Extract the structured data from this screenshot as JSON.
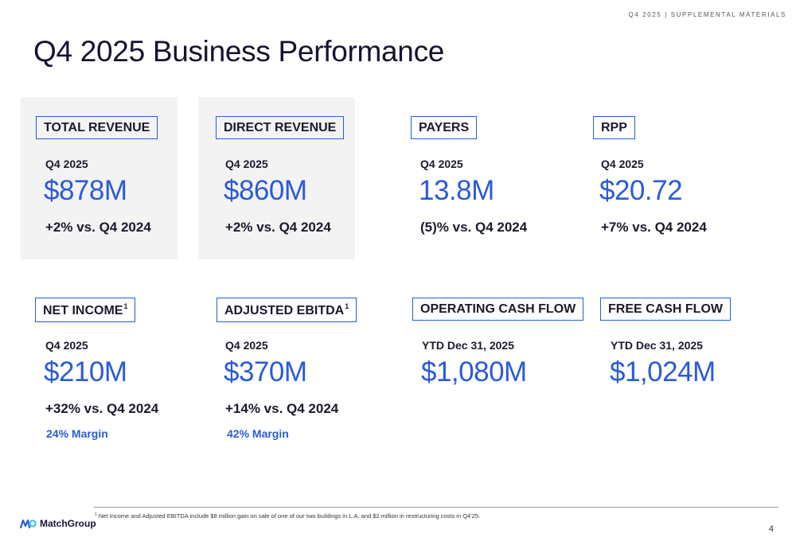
{
  "header": {
    "label": "Q4 2025 | SUPPLEMENTAL MATERIALS"
  },
  "title": "Q4 2025 Business Performance",
  "metrics": [
    {
      "label": "TOTAL REVENUE",
      "period": "Q4 2025",
      "value": "$878M",
      "change": "+2% vs. Q4 2024"
    },
    {
      "label": "DIRECT REVENUE",
      "period": "Q4 2025",
      "value": "$860M",
      "change": "+2% vs. Q4 2024"
    },
    {
      "label": "PAYERS",
      "period": "Q4 2025",
      "value": "13.8M",
      "change": "(5)% vs. Q4 2024"
    },
    {
      "label": "RPP",
      "period": "Q4 2025",
      "value": "$20.72",
      "change": "+7% vs. Q4 2024"
    },
    {
      "label": "NET INCOME",
      "sup": "1",
      "period": "Q4 2025",
      "value": "$210M",
      "change": "+32% vs. Q4 2024",
      "margin": "24% Margin"
    },
    {
      "label": "ADJUSTED EBITDA",
      "sup": "1",
      "period": "Q4 2025",
      "value": "$370M",
      "change": "+14% vs. Q4 2024",
      "margin": "42% Margin"
    },
    {
      "label": "OPERATING CASH FLOW",
      "period": "YTD Dec 31, 2025",
      "value": "$1,080M"
    },
    {
      "label": "FREE CASH FLOW",
      "period": "YTD Dec 31, 2025",
      "value": "$1,024M"
    }
  ],
  "footer": {
    "footnote_marker": "1",
    "footnote": "Net Income and Adjusted EBITDA include $8 million gain on sale of one of our two buildings in L.A. and $2 million in restructuring costs in Q4'25.",
    "logo_text": "MatchGroup",
    "page_number": "4"
  },
  "colors": {
    "accent": "#2a5bd7",
    "box_border": "#1f5fd6",
    "panel": "#f3f3f3",
    "title": "#1a1033"
  }
}
